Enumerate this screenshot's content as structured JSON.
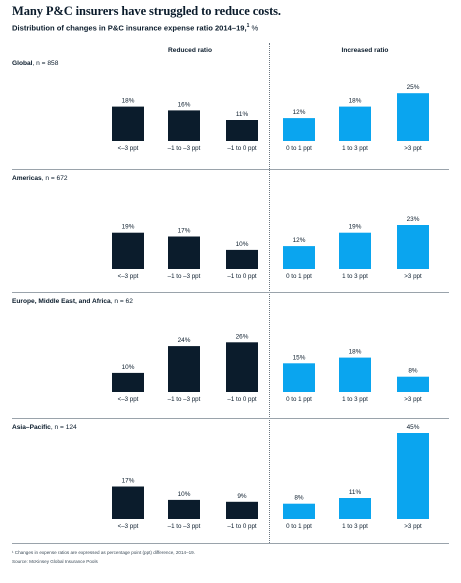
{
  "title": "Many P&C insurers have struggled to reduce costs.",
  "subtitle": {
    "text": "Distribution of changes in P&C insurance expense ratio 2014–19,",
    "footnote_marker": "1",
    "unit": " %"
  },
  "group_headers": {
    "reduced": "Reduced ratio",
    "increased": "Increased ratio"
  },
  "footnotes": {
    "note": "¹ Changes in expense ratios are expressed as percentage point (ppt) difference, 2014–19.",
    "source": "Source: McKinsey Global Insurance Pools"
  },
  "colors": {
    "reduced_bar": "#0b1c2c",
    "increased_bar": "#0aa5ef",
    "text": "#0b1c2c"
  },
  "chart_data": [
    {
      "type": "bar",
      "region": "Global",
      "n_label": ", n = 858",
      "categories": [
        "<–3 ppt",
        "–1 to –3 ppt",
        "–1 to 0 ppt",
        "0 to 1 ppt",
        "1 to 3 ppt",
        ">3 ppt"
      ],
      "values": [
        18,
        16,
        11,
        12,
        18,
        25
      ],
      "value_labels": [
        "18%",
        "16%",
        "11%",
        "12%",
        "18%",
        "25%"
      ]
    },
    {
      "type": "bar",
      "region": "Americas",
      "n_label": ", n = 672",
      "categories": [
        "<–3 ppt",
        "–1 to –3 ppt",
        "–1 to 0 ppt",
        "0 to 1 ppt",
        "1 to 3 ppt",
        ">3 ppt"
      ],
      "values": [
        19,
        17,
        10,
        12,
        19,
        23
      ],
      "value_labels": [
        "19%",
        "17%",
        "10%",
        "12%",
        "19%",
        "23%"
      ]
    },
    {
      "type": "bar",
      "region": "Europe, Middle East, and Africa",
      "n_label": ", n = 62",
      "categories": [
        "<–3 ppt",
        "–1 to –3 ppt",
        "–1 to 0 ppt",
        "0 to 1 ppt",
        "1 to 3 ppt",
        ">3 ppt"
      ],
      "values": [
        10,
        24,
        26,
        15,
        18,
        8
      ],
      "value_labels": [
        "10%",
        "24%",
        "26%",
        "15%",
        "18%",
        "8%"
      ]
    },
    {
      "type": "bar",
      "region": "Asia–Pacific",
      "n_label": ", n = 124",
      "categories": [
        "<–3 ppt",
        "–1 to –3 ppt",
        "–1 to 0 ppt",
        "0 to 1 ppt",
        "1 to 3 ppt",
        ">3 ppt"
      ],
      "values": [
        17,
        10,
        9,
        8,
        11,
        45
      ],
      "value_labels": [
        "17%",
        "10%",
        "9%",
        "8%",
        "11%",
        "45%"
      ]
    }
  ]
}
